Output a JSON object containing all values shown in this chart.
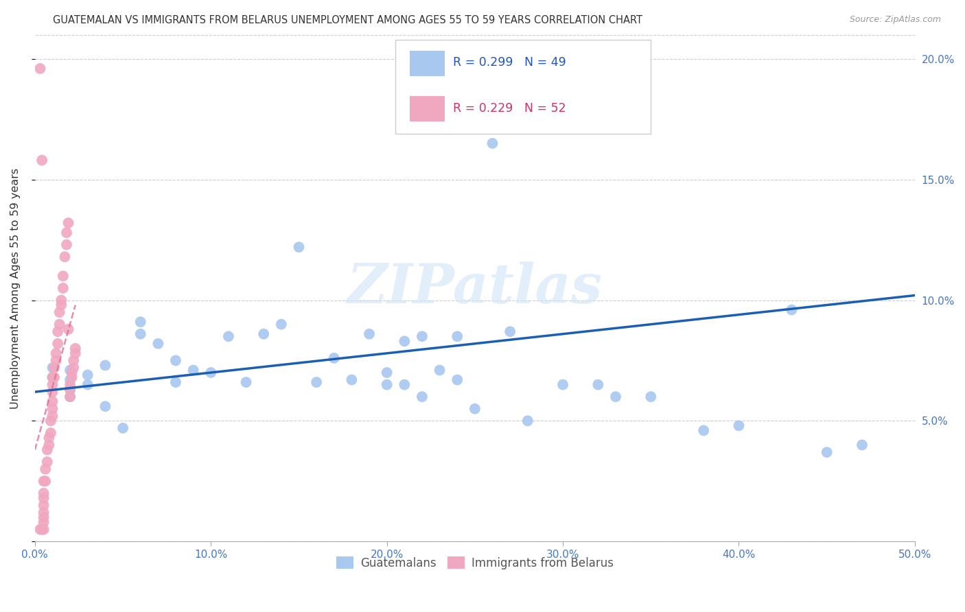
{
  "title": "GUATEMALAN VS IMMIGRANTS FROM BELARUS UNEMPLOYMENT AMONG AGES 55 TO 59 YEARS CORRELATION CHART",
  "source": "Source: ZipAtlas.com",
  "ylabel": "Unemployment Among Ages 55 to 59 years",
  "xlim": [
    0,
    0.5
  ],
  "ylim": [
    0,
    0.21
  ],
  "x_ticks": [
    0.0,
    0.1,
    0.2,
    0.3,
    0.4,
    0.5
  ],
  "x_tick_labels": [
    "0.0%",
    "10.0%",
    "20.0%",
    "30.0%",
    "40.0%",
    "50.0%"
  ],
  "y_ticks": [
    0.0,
    0.05,
    0.1,
    0.15,
    0.2
  ],
  "y_tick_labels": [
    "",
    "5.0%",
    "10.0%",
    "15.0%",
    "20.0%"
  ],
  "blue_R": 0.299,
  "blue_N": 49,
  "pink_R": 0.229,
  "pink_N": 52,
  "blue_color": "#a8c8f0",
  "pink_color": "#f0a8c0",
  "blue_line_color": "#1a5fb4",
  "pink_line_color": "#e07090",
  "watermark": "ZIPatlas",
  "blue_scatter_x": [
    0.01,
    0.01,
    0.02,
    0.02,
    0.02,
    0.02,
    0.03,
    0.03,
    0.04,
    0.04,
    0.05,
    0.06,
    0.06,
    0.07,
    0.08,
    0.08,
    0.09,
    0.1,
    0.11,
    0.12,
    0.13,
    0.14,
    0.15,
    0.16,
    0.17,
    0.18,
    0.19,
    0.2,
    0.2,
    0.21,
    0.21,
    0.22,
    0.22,
    0.23,
    0.24,
    0.24,
    0.25,
    0.26,
    0.27,
    0.28,
    0.3,
    0.32,
    0.33,
    0.35,
    0.38,
    0.4,
    0.43,
    0.45,
    0.47
  ],
  "blue_scatter_y": [
    0.068,
    0.072,
    0.063,
    0.067,
    0.071,
    0.06,
    0.065,
    0.069,
    0.073,
    0.056,
    0.047,
    0.086,
    0.091,
    0.082,
    0.066,
    0.075,
    0.071,
    0.07,
    0.085,
    0.066,
    0.086,
    0.09,
    0.122,
    0.066,
    0.076,
    0.067,
    0.086,
    0.065,
    0.07,
    0.065,
    0.083,
    0.06,
    0.085,
    0.071,
    0.067,
    0.085,
    0.055,
    0.165,
    0.087,
    0.05,
    0.065,
    0.065,
    0.06,
    0.06,
    0.046,
    0.048,
    0.096,
    0.037,
    0.04
  ],
  "pink_scatter_x": [
    0.003,
    0.003,
    0.004,
    0.004,
    0.005,
    0.005,
    0.005,
    0.005,
    0.005,
    0.005,
    0.005,
    0.005,
    0.006,
    0.006,
    0.007,
    0.007,
    0.008,
    0.008,
    0.009,
    0.009,
    0.01,
    0.01,
    0.01,
    0.01,
    0.01,
    0.01,
    0.011,
    0.011,
    0.012,
    0.012,
    0.013,
    0.013,
    0.014,
    0.014,
    0.015,
    0.015,
    0.016,
    0.016,
    0.017,
    0.018,
    0.018,
    0.019,
    0.019,
    0.02,
    0.02,
    0.02,
    0.021,
    0.021,
    0.022,
    0.022,
    0.023,
    0.023
  ],
  "pink_scatter_y": [
    0.196,
    0.005,
    0.158,
    0.005,
    0.005,
    0.008,
    0.01,
    0.012,
    0.015,
    0.018,
    0.02,
    0.025,
    0.025,
    0.03,
    0.033,
    0.038,
    0.04,
    0.043,
    0.045,
    0.05,
    0.052,
    0.055,
    0.058,
    0.062,
    0.065,
    0.068,
    0.068,
    0.072,
    0.075,
    0.078,
    0.082,
    0.087,
    0.09,
    0.095,
    0.098,
    0.1,
    0.105,
    0.11,
    0.118,
    0.123,
    0.128,
    0.132,
    0.088,
    0.06,
    0.063,
    0.065,
    0.068,
    0.07,
    0.072,
    0.075,
    0.078,
    0.08
  ],
  "blue_trend_x": [
    0.0,
    0.5
  ],
  "blue_trend_y": [
    0.062,
    0.102
  ],
  "pink_trend_x": [
    0.0,
    0.023
  ],
  "pink_trend_y": [
    0.038,
    0.098
  ],
  "fig_width": 14.06,
  "fig_height": 8.92
}
